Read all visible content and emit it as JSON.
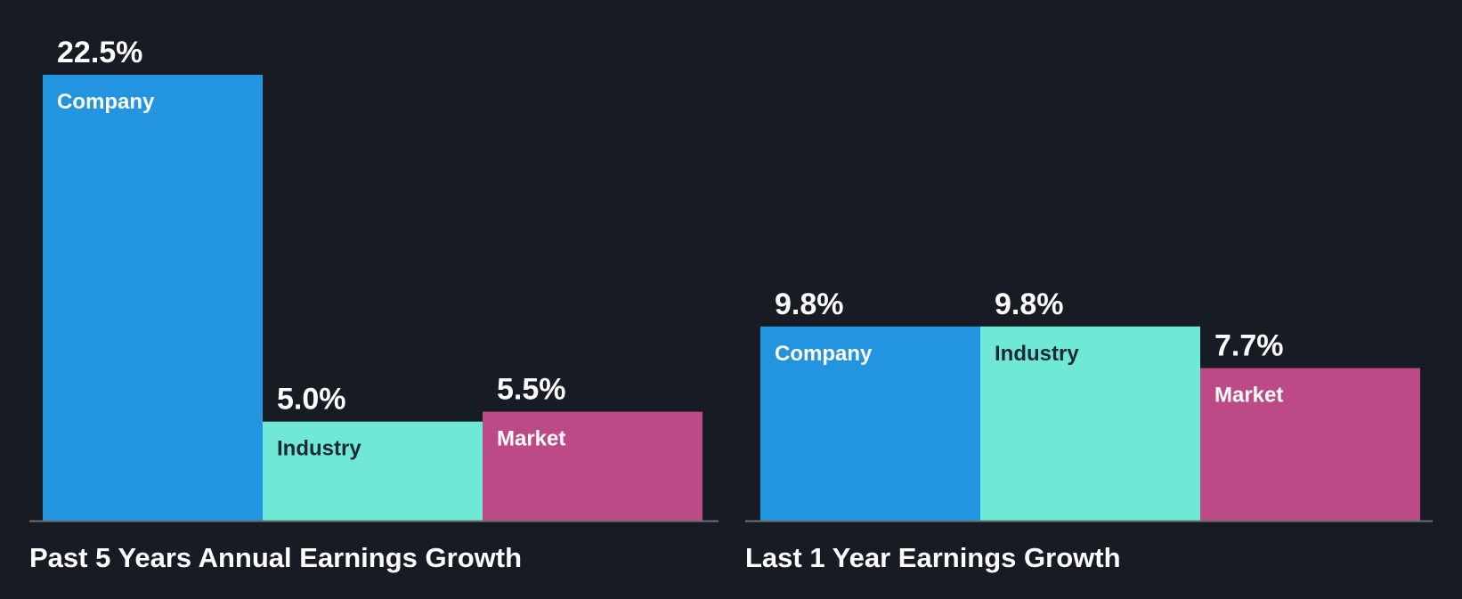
{
  "colors": {
    "background": "#161b24",
    "company": "#2394df",
    "industry": "#6fe8d6",
    "market": "#bb4a86",
    "baseline": "#6b6f76",
    "text_light": "#ffffff",
    "text_dark": "#1d2a33"
  },
  "chart_data": [
    {
      "type": "bar",
      "title": "Past 5 Years Annual Earnings Growth",
      "categories": [
        "Company",
        "Industry",
        "Market"
      ],
      "values": [
        22.5,
        5.0,
        5.5
      ],
      "value_labels": [
        "22.5%",
        "5.0%",
        "5.5%"
      ],
      "ylim": [
        0,
        22.5
      ]
    },
    {
      "type": "bar",
      "title": "Last 1 Year Earnings Growth",
      "categories": [
        "Company",
        "Industry",
        "Market"
      ],
      "values": [
        9.8,
        9.8,
        7.7
      ],
      "value_labels": [
        "9.8%",
        "9.8%",
        "7.7%"
      ],
      "ylim": [
        0,
        22.5
      ]
    }
  ]
}
